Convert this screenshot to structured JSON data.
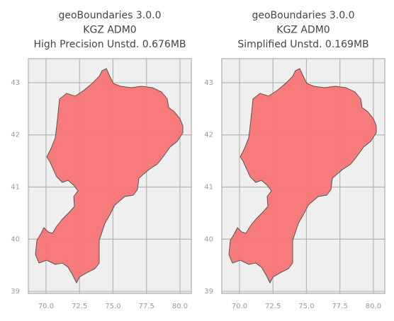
{
  "chart_data": [
    {
      "type": "map",
      "title": [
        "geoBoundaries 3.0.0",
        "KGZ ADM0",
        "High Precision Unstd. 0.676MB"
      ],
      "xlim": [
        68.68,
        80.85
      ],
      "ylim": [
        38.96,
        43.46
      ],
      "xticks": [
        {
          "value": 70,
          "label": "70.0"
        },
        {
          "value": 72.5,
          "label": "72.5"
        },
        {
          "value": 75,
          "label": "75.0"
        },
        {
          "value": 77.5,
          "label": "77.5"
        },
        {
          "value": 80,
          "label": "80.0"
        }
      ],
      "yticks": [
        39,
        40,
        41,
        42,
        43
      ],
      "grid": true,
      "color": "#f87474"
    },
    {
      "type": "map",
      "title": [
        "geoBoundaries 3.0.0",
        "KGZ ADM0",
        "Simplified Unstd. 0.169MB"
      ],
      "xlim": [
        68.68,
        80.85
      ],
      "ylim": [
        38.96,
        43.46
      ],
      "xticks": [
        {
          "value": 70,
          "label": "70.0"
        },
        {
          "value": 72.5,
          "label": "72.5"
        },
        {
          "value": 75,
          "label": "75.0"
        },
        {
          "value": 77.5,
          "label": "77.5"
        },
        {
          "value": 80,
          "label": "80.0"
        }
      ],
      "yticks": [
        39,
        40,
        41,
        42,
        43
      ],
      "grid": true,
      "color": "#f87474"
    }
  ]
}
